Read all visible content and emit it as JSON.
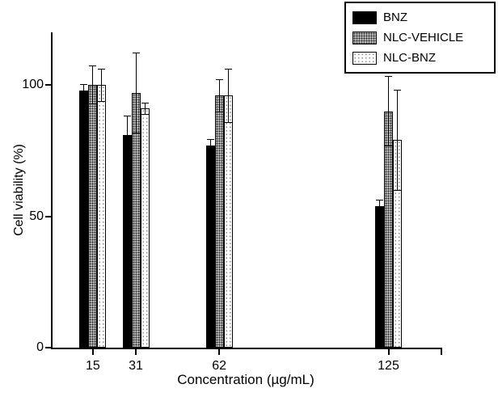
{
  "chart_data": {
    "type": "bar",
    "title": "",
    "xlabel": "Concentration (µg/mL)",
    "ylabel": "Cell viability (%)",
    "categories": [
      15,
      31,
      62,
      125
    ],
    "x_domain": [
      0,
      145
    ],
    "ylim": [
      0,
      120
    ],
    "yticks": [
      0,
      50,
      100
    ],
    "grid": false,
    "legend_position": "top-right",
    "series": [
      {
        "name": "BNZ",
        "style": "solid-black",
        "color": "#000000",
        "values": [
          98,
          81,
          77,
          54
        ],
        "errors": [
          2,
          7,
          2,
          2
        ]
      },
      {
        "name": "NLC-VEHICLE",
        "style": "gray-dots",
        "color": "#b3b3b3",
        "values": [
          100,
          97,
          96,
          90
        ],
        "errors": [
          7,
          15,
          6,
          13
        ]
      },
      {
        "name": "NLC-BNZ",
        "style": "white-dots",
        "color": "#ffffff",
        "values": [
          100,
          91,
          96,
          79
        ],
        "errors": [
          6,
          2,
          10,
          19
        ]
      }
    ]
  }
}
